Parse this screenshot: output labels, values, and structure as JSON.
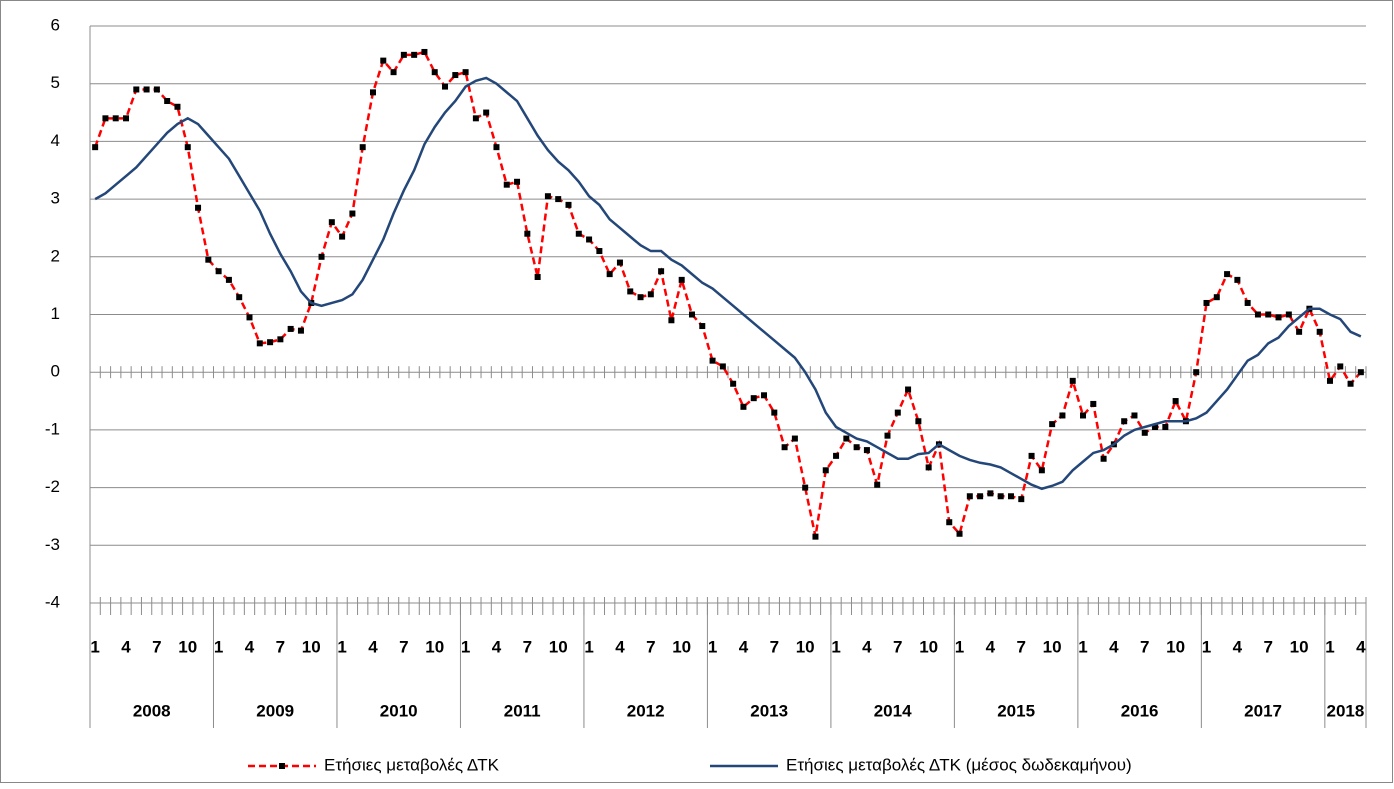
{
  "chart_data": {
    "type": "line",
    "categories": [
      "1",
      null,
      null,
      "4",
      null,
      null,
      "7",
      null,
      null,
      "10",
      null,
      null,
      "1",
      null,
      null,
      "4",
      null,
      null,
      "7",
      null,
      null,
      "10",
      null,
      null,
      "1",
      null,
      null,
      "4",
      null,
      null,
      "7",
      null,
      null,
      "10",
      null,
      null,
      "1",
      null,
      null,
      "4",
      null,
      null,
      "7",
      null,
      null,
      "10",
      null,
      null,
      "1",
      null,
      null,
      "4",
      null,
      null,
      "7",
      null,
      null,
      "10",
      null,
      null,
      "1",
      null,
      null,
      "4",
      null,
      null,
      "7",
      null,
      null,
      "10",
      null,
      null,
      "1",
      null,
      null,
      "4",
      null,
      null,
      "7",
      null,
      null,
      "10",
      null,
      null,
      "1",
      null,
      null,
      "4",
      null,
      null,
      "7",
      null,
      null,
      "10",
      null,
      null,
      "1",
      null,
      null,
      "4",
      null,
      null,
      "7",
      null,
      null,
      "10",
      null,
      null,
      "1",
      null,
      null,
      "4",
      null,
      null,
      "7",
      null,
      null,
      "10",
      null,
      null,
      "1",
      null,
      null,
      "4"
    ],
    "years": [
      "2008",
      "2009",
      "2010",
      "2011",
      "2012",
      "2013",
      "2014",
      "2015",
      "2016",
      "2017",
      "2018"
    ],
    "series": [
      {
        "name": "Ετήσιες μεταβολές ΔΤΚ",
        "color": "#ff0000",
        "style": "dashed",
        "marker_color": "#000000",
        "values": [
          3.9,
          4.4,
          4.4,
          4.4,
          4.9,
          4.9,
          4.9,
          4.7,
          4.6,
          3.9,
          2.85,
          1.95,
          1.75,
          1.6,
          1.3,
          0.95,
          0.5,
          0.52,
          0.57,
          0.75,
          0.72,
          1.2,
          2.0,
          2.6,
          2.35,
          2.75,
          3.9,
          4.85,
          5.4,
          5.2,
          5.5,
          5.5,
          5.55,
          5.2,
          4.95,
          5.15,
          5.2,
          4.4,
          4.5,
          3.9,
          3.25,
          3.3,
          2.4,
          1.65,
          3.05,
          3.0,
          2.9,
          2.4,
          2.3,
          2.1,
          1.7,
          1.9,
          1.4,
          1.3,
          1.35,
          1.75,
          0.9,
          1.6,
          1.0,
          0.8,
          0.2,
          0.1,
          -0.2,
          -0.6,
          -0.45,
          -0.4,
          -0.7,
          -1.3,
          -1.15,
          -2.0,
          -2.85,
          -1.7,
          -1.45,
          -1.15,
          -1.3,
          -1.35,
          -1.95,
          -1.1,
          -0.7,
          -0.3,
          -0.85,
          -1.65,
          -1.25,
          -2.6,
          -2.8,
          -2.15,
          -2.15,
          -2.1,
          -2.15,
          -2.15,
          -2.2,
          -1.45,
          -1.7,
          -0.9,
          -0.75,
          -0.15,
          -0.75,
          -0.55,
          -1.5,
          -1.25,
          -0.85,
          -0.75,
          -1.05,
          -0.95,
          -0.95,
          -0.5,
          -0.85,
          0.0,
          1.2,
          1.3,
          1.7,
          1.6,
          1.2,
          1.0,
          1.0,
          0.95,
          1.0,
          0.7,
          1.1,
          0.7,
          -0.15,
          0.1,
          -0.2,
          0.0
        ]
      },
      {
        "name": "Ετήσιες μεταβολές ΔΤΚ (μέσος δωδεκαμήνου)",
        "color": "#24477a",
        "style": "solid",
        "values": [
          3.0,
          3.1,
          3.25,
          3.4,
          3.55,
          3.75,
          3.95,
          4.15,
          4.3,
          4.4,
          4.3,
          4.1,
          3.9,
          3.7,
          3.4,
          3.1,
          2.8,
          2.4,
          2.05,
          1.75,
          1.4,
          1.2,
          1.15,
          1.2,
          1.25,
          1.35,
          1.6,
          1.95,
          2.3,
          2.75,
          3.15,
          3.5,
          3.95,
          4.25,
          4.5,
          4.7,
          4.95,
          5.05,
          5.1,
          5.0,
          4.85,
          4.7,
          4.4,
          4.1,
          3.85,
          3.65,
          3.5,
          3.3,
          3.05,
          2.9,
          2.65,
          2.5,
          2.35,
          2.2,
          2.1,
          2.1,
          1.95,
          1.85,
          1.7,
          1.55,
          1.45,
          1.3,
          1.15,
          1.0,
          0.85,
          0.7,
          0.55,
          0.4,
          0.25,
          0.0,
          -0.3,
          -0.7,
          -0.95,
          -1.05,
          -1.15,
          -1.2,
          -1.3,
          -1.4,
          -1.5,
          -1.5,
          -1.42,
          -1.4,
          -1.25,
          -1.35,
          -1.45,
          -1.52,
          -1.57,
          -1.6,
          -1.65,
          -1.75,
          -1.85,
          -1.95,
          -2.02,
          -1.97,
          -1.9,
          -1.7,
          -1.55,
          -1.4,
          -1.35,
          -1.25,
          -1.1,
          -1.0,
          -0.95,
          -0.9,
          -0.85,
          -0.85,
          -0.85,
          -0.8,
          -0.7,
          -0.5,
          -0.3,
          -0.05,
          0.2,
          0.3,
          0.5,
          0.6,
          0.8,
          0.95,
          1.1,
          1.1,
          1.0,
          0.92,
          0.7,
          0.62
        ]
      }
    ],
    "ylim": [
      -4,
      6
    ],
    "yticks": [
      -4,
      -3,
      -2,
      -1,
      0,
      1,
      2,
      3,
      4,
      5,
      6
    ],
    "grid": true,
    "legend": "bottom"
  }
}
